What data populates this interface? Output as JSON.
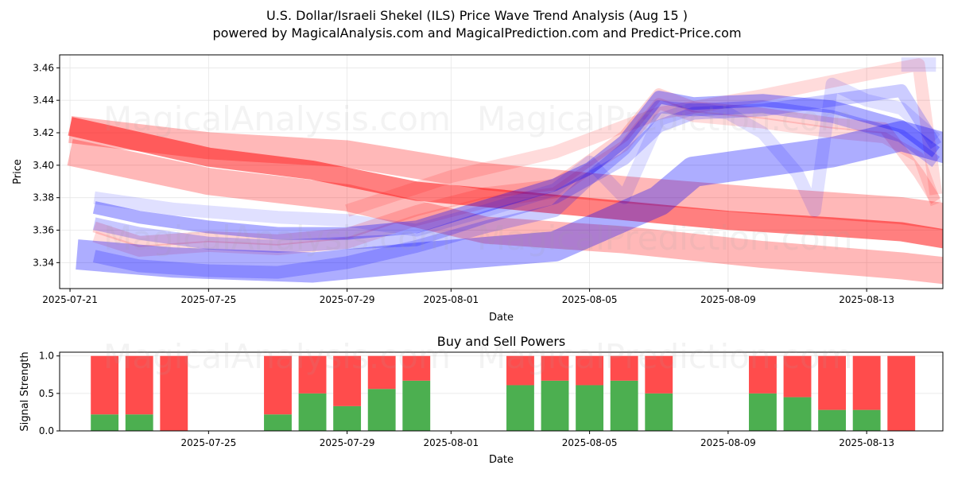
{
  "title_line1": "U.S. Dollar/Israeli Shekel (ILS) Price Wave Trend Analysis (Aug 15 )",
  "title_line2": "powered by MagicalAnalysis.com and MagicalPrediction.com and Predict-Price.com",
  "watermarks": {
    "w1": "MagicalAnalysis.com",
    "w2": "MagicalPrediction.com",
    "w3": "MagicalAnalysis.com",
    "w4": "MagicalPrediction.com",
    "w5": "MagicalAnalysis.com",
    "w6": "MagicalPrediction.com"
  },
  "chart_data": [
    {
      "type": "line",
      "title": "",
      "xlabel": "Date",
      "ylabel": "Price",
      "xlim": [
        -0.3,
        25.2
      ],
      "ylim": [
        3.324,
        3.468
      ],
      "x_ticks": [
        {
          "x": 0,
          "label": "2025-07-21"
        },
        {
          "x": 4,
          "label": "2025-07-25"
        },
        {
          "x": 8,
          "label": "2025-07-29"
        },
        {
          "x": 11,
          "label": "2025-08-01"
        },
        {
          "x": 15,
          "label": "2025-08-05"
        },
        {
          "x": 19,
          "label": "2025-08-09"
        },
        {
          "x": 23,
          "label": "2025-08-13"
        }
      ],
      "y_ticks": [
        3.34,
        3.36,
        3.38,
        3.4,
        3.42,
        3.44,
        3.46
      ],
      "grid": true,
      "series": [
        {
          "name": "red wave 1",
          "color": "#ff0000",
          "opacity": 0.5,
          "width": 24,
          "x": [
            0,
            4,
            7,
            10,
            13,
            16,
            19,
            22,
            24,
            25.7
          ],
          "y": [
            3.424,
            3.405,
            3.397,
            3.384,
            3.378,
            3.372,
            3.366,
            3.362,
            3.359,
            3.353
          ]
        },
        {
          "name": "red wave 2",
          "color": "#ff0000",
          "opacity": 0.28,
          "width": 34,
          "x": [
            0,
            4,
            8,
            12,
            16,
            20,
            24,
            25.7
          ],
          "y": [
            3.422,
            3.412,
            3.407,
            3.393,
            3.385,
            3.378,
            3.372,
            3.367
          ]
        },
        {
          "name": "red wave 3",
          "color": "#ff0000",
          "opacity": 0.28,
          "width": 34,
          "x": [
            0,
            4,
            8,
            12,
            16,
            20,
            24,
            25.7
          ],
          "y": [
            3.408,
            3.39,
            3.38,
            3.36,
            3.354,
            3.345,
            3.338,
            3.334
          ]
        },
        {
          "name": "red wave 4",
          "color": "#ff0000",
          "opacity": 0.17,
          "width": 14,
          "x": [
            0.7,
            2,
            4,
            6,
            8,
            10,
            12,
            14,
            15,
            16,
            17,
            18,
            20,
            22,
            23.5,
            24.5,
            25
          ],
          "y": [
            3.362,
            3.353,
            3.356,
            3.354,
            3.358,
            3.372,
            3.383,
            3.388,
            3.403,
            3.418,
            3.444,
            3.436,
            3.432,
            3.426,
            3.423,
            3.395,
            3.378
          ]
        },
        {
          "name": "red wave 5",
          "color": "#ff0000",
          "opacity": 0.14,
          "width": 14,
          "x": [
            0.7,
            2,
            4,
            6,
            8,
            10,
            12,
            14,
            15,
            16,
            17,
            18,
            20,
            22,
            23.5,
            24.5,
            25
          ],
          "y": [
            3.356,
            3.347,
            3.35,
            3.348,
            3.352,
            3.366,
            3.377,
            3.383,
            3.398,
            3.412,
            3.438,
            3.43,
            3.426,
            3.42,
            3.417,
            3.405,
            3.376
          ]
        },
        {
          "name": "red wave 6",
          "color": "#ff0000",
          "opacity": 0.14,
          "width": 16,
          "x": [
            8,
            11,
            14,
            17,
            20,
            23,
            24.5,
            25
          ],
          "y": [
            3.372,
            3.393,
            3.408,
            3.432,
            3.443,
            3.456,
            3.462,
            3.382
          ]
        },
        {
          "name": "blue wave 1",
          "color": "#0000ff",
          "opacity": 0.32,
          "width": 38,
          "x": [
            0.2,
            3,
            7,
            10,
            14,
            17,
            18,
            22,
            24,
            25.7
          ],
          "y": [
            3.345,
            3.34,
            3.337,
            3.343,
            3.35,
            3.378,
            3.396,
            3.408,
            3.418,
            3.408
          ]
        },
        {
          "name": "blue wave 2",
          "color": "#0000ff",
          "opacity": 0.32,
          "width": 16,
          "x": [
            0.7,
            2,
            4,
            6,
            8,
            10,
            12,
            14,
            15,
            16,
            17,
            18,
            20,
            22,
            24,
            25
          ],
          "y": [
            3.374,
            3.368,
            3.362,
            3.358,
            3.358,
            3.362,
            3.375,
            3.388,
            3.398,
            3.415,
            3.442,
            3.438,
            3.44,
            3.436,
            3.424,
            3.408
          ]
        },
        {
          "name": "blue wave 3",
          "color": "#0000ff",
          "opacity": 0.22,
          "width": 16,
          "x": [
            0.7,
            2,
            4,
            6,
            8,
            10,
            12,
            14,
            15,
            16,
            17,
            18,
            20,
            22,
            24,
            25
          ],
          "y": [
            3.364,
            3.358,
            3.352,
            3.35,
            3.352,
            3.354,
            3.368,
            3.38,
            3.392,
            3.41,
            3.436,
            3.434,
            3.436,
            3.43,
            3.418,
            3.402
          ]
        },
        {
          "name": "blue wave 4",
          "color": "#0000ff",
          "opacity": 0.2,
          "width": 16,
          "x": [
            0.7,
            2,
            4,
            6,
            8,
            10,
            12,
            14,
            15,
            16,
            17,
            18,
            20,
            22,
            24,
            25
          ],
          "y": [
            3.344,
            3.338,
            3.335,
            3.334,
            3.34,
            3.35,
            3.362,
            3.372,
            3.392,
            3.404,
            3.424,
            3.432,
            3.434,
            3.44,
            3.446,
            3.412
          ]
        },
        {
          "name": "blue wave 5",
          "color": "#0000ff",
          "opacity": 0.12,
          "width": 16,
          "x": [
            0.7,
            3,
            6,
            8,
            10,
            12,
            14,
            15,
            16,
            17,
            18,
            19,
            20,
            21,
            21.5,
            22,
            23,
            24,
            25
          ],
          "y": [
            3.38,
            3.373,
            3.368,
            3.366,
            3.36,
            3.372,
            3.385,
            3.402,
            3.38,
            3.428,
            3.435,
            3.432,
            3.42,
            3.395,
            3.372,
            3.45,
            3.44,
            3.435,
            3.416
          ]
        },
        {
          "name": "blue wave 6",
          "color": "#0000ff",
          "opacity": 0.12,
          "width": 18,
          "x": [
            24,
            25
          ],
          "y": [
            3.462,
            3.462
          ]
        }
      ]
    },
    {
      "type": "bar",
      "stacked": true,
      "title": "Buy and Sell Powers",
      "xlabel": "Date",
      "ylabel": "Signal Strength",
      "ylim": [
        0,
        1.05
      ],
      "y_ticks": [
        0.0,
        0.5,
        1.0
      ],
      "x_ticks": [
        {
          "x": 4,
          "label": "2025-07-25"
        },
        {
          "x": 8,
          "label": "2025-07-29"
        },
        {
          "x": 11,
          "label": "2025-08-01"
        },
        {
          "x": 15,
          "label": "2025-08-05"
        },
        {
          "x": 19,
          "label": "2025-08-09"
        },
        {
          "x": 23,
          "label": "2025-08-13"
        }
      ],
      "x": [
        1,
        2,
        3,
        6,
        7,
        8,
        9,
        10,
        13,
        14,
        15,
        16,
        17,
        20,
        21,
        22,
        23,
        24
      ],
      "series": [
        {
          "name": "Buy",
          "color": "#4caf50",
          "values": [
            0.22,
            0.22,
            0.0,
            0.22,
            0.5,
            0.33,
            0.56,
            0.67,
            0.61,
            0.67,
            0.61,
            0.67,
            0.5,
            0.5,
            0.45,
            0.28,
            0.28,
            0.0
          ]
        },
        {
          "name": "Sell",
          "color": "#ff4c4c",
          "values": [
            0.78,
            0.78,
            1.0,
            0.78,
            0.5,
            0.67,
            0.44,
            0.33,
            0.39,
            0.33,
            0.39,
            0.33,
            0.5,
            0.5,
            0.55,
            0.72,
            0.72,
            1.0
          ]
        }
      ]
    }
  ]
}
